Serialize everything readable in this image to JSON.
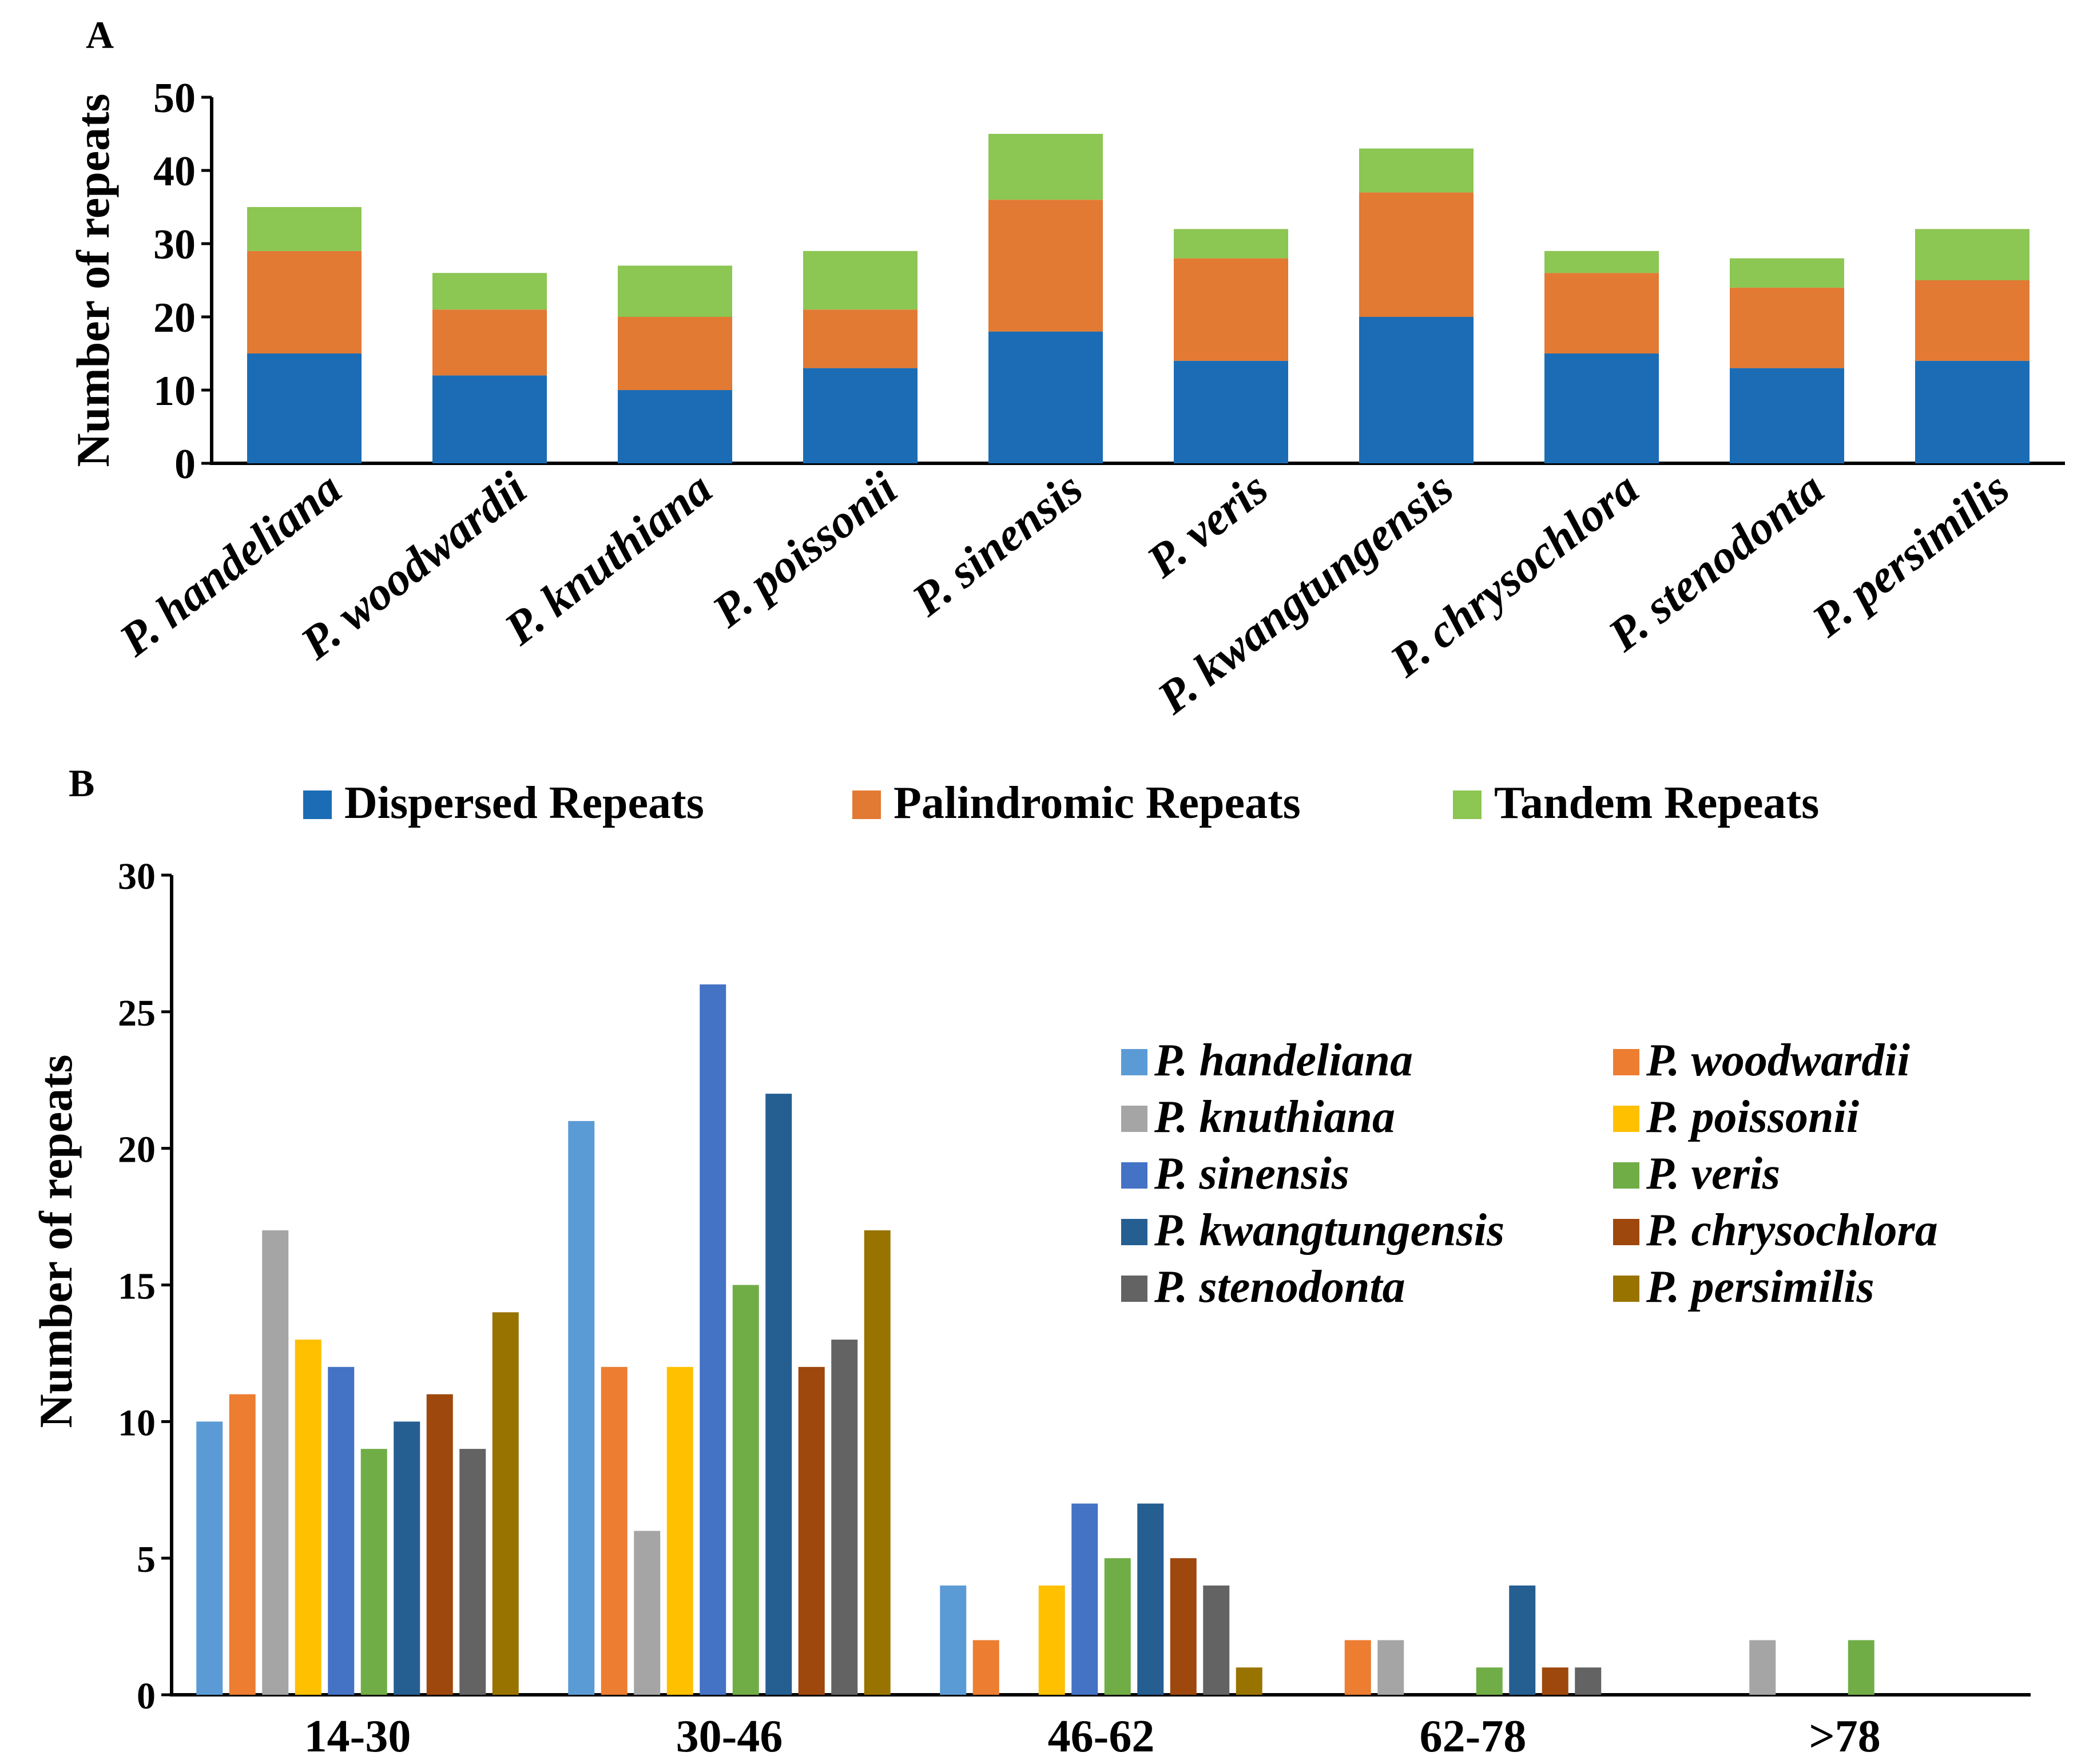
{
  "chart_data": [
    {
      "panel": "A",
      "type": "bar",
      "stacked": true,
      "ylabel": "Number of  repeats",
      "ylim": [
        0,
        50
      ],
      "yticks": [
        0,
        10,
        20,
        30,
        40,
        50
      ],
      "categories": [
        "P. handeliana",
        "P. woodwardii",
        "P. knuthiana",
        "P. poissonii",
        "P. sinensis",
        "P. veris",
        "P. kwangtungensis",
        "P. chrysochlora",
        "P. stenodonta",
        "P. persimilis"
      ],
      "series": [
        {
          "name": "Dispersed Repeats",
          "color": "#1b6cb5",
          "values": [
            15,
            12,
            10,
            13,
            18,
            14,
            20,
            15,
            13,
            14
          ]
        },
        {
          "name": "Palindromic Repeats",
          "color": "#e27a33",
          "values": [
            14,
            9,
            10,
            8,
            18,
            14,
            17,
            11,
            11,
            11
          ]
        },
        {
          "name": "Tandem Repeats",
          "color": "#8cc653",
          "values": [
            6,
            5,
            7,
            8,
            9,
            4,
            6,
            3,
            4,
            7
          ]
        }
      ],
      "legend": "bottom"
    },
    {
      "panel": "B",
      "type": "bar",
      "ylabel": "Number of  repeats",
      "ylim": [
        0,
        30
      ],
      "yticks": [
        0,
        5,
        10,
        15,
        20,
        25,
        30
      ],
      "categories": [
        "14-30",
        "30-46",
        "46-62",
        "62-78",
        ">78"
      ],
      "series": [
        {
          "name": "P. handeliana",
          "color": "#5b9bd5",
          "values": [
            10,
            21,
            4,
            0,
            0
          ]
        },
        {
          "name": "P. woodwardii",
          "color": "#ed7d31",
          "values": [
            11,
            12,
            2,
            2,
            0
          ]
        },
        {
          "name": "P. knuthiana",
          "color": "#a5a5a5",
          "values": [
            17,
            6,
            0,
            2,
            2
          ]
        },
        {
          "name": "P. poissonii",
          "color": "#ffc000",
          "values": [
            13,
            12,
            4,
            0,
            0
          ]
        },
        {
          "name": "P. sinensis",
          "color": "#4472c4",
          "values": [
            12,
            26,
            7,
            0,
            0
          ]
        },
        {
          "name": "P. veris",
          "color": "#70ad47",
          "values": [
            9,
            15,
            5,
            1,
            2
          ]
        },
        {
          "name": "P. kwangtungensis",
          "color": "#255e91",
          "values": [
            10,
            22,
            7,
            4,
            0
          ]
        },
        {
          "name": "P. chrysochlora",
          "color": "#9e480e",
          "values": [
            11,
            12,
            5,
            1,
            0
          ]
        },
        {
          "name": "P. stenodonta",
          "color": "#636363",
          "values": [
            9,
            13,
            4,
            1,
            0
          ]
        },
        {
          "name": "P. persimilis",
          "color": "#997300",
          "values": [
            14,
            17,
            1,
            0,
            0
          ]
        }
      ],
      "legend": "top-right"
    }
  ],
  "labels": {
    "panel_a": "A",
    "panel_b": "B"
  }
}
